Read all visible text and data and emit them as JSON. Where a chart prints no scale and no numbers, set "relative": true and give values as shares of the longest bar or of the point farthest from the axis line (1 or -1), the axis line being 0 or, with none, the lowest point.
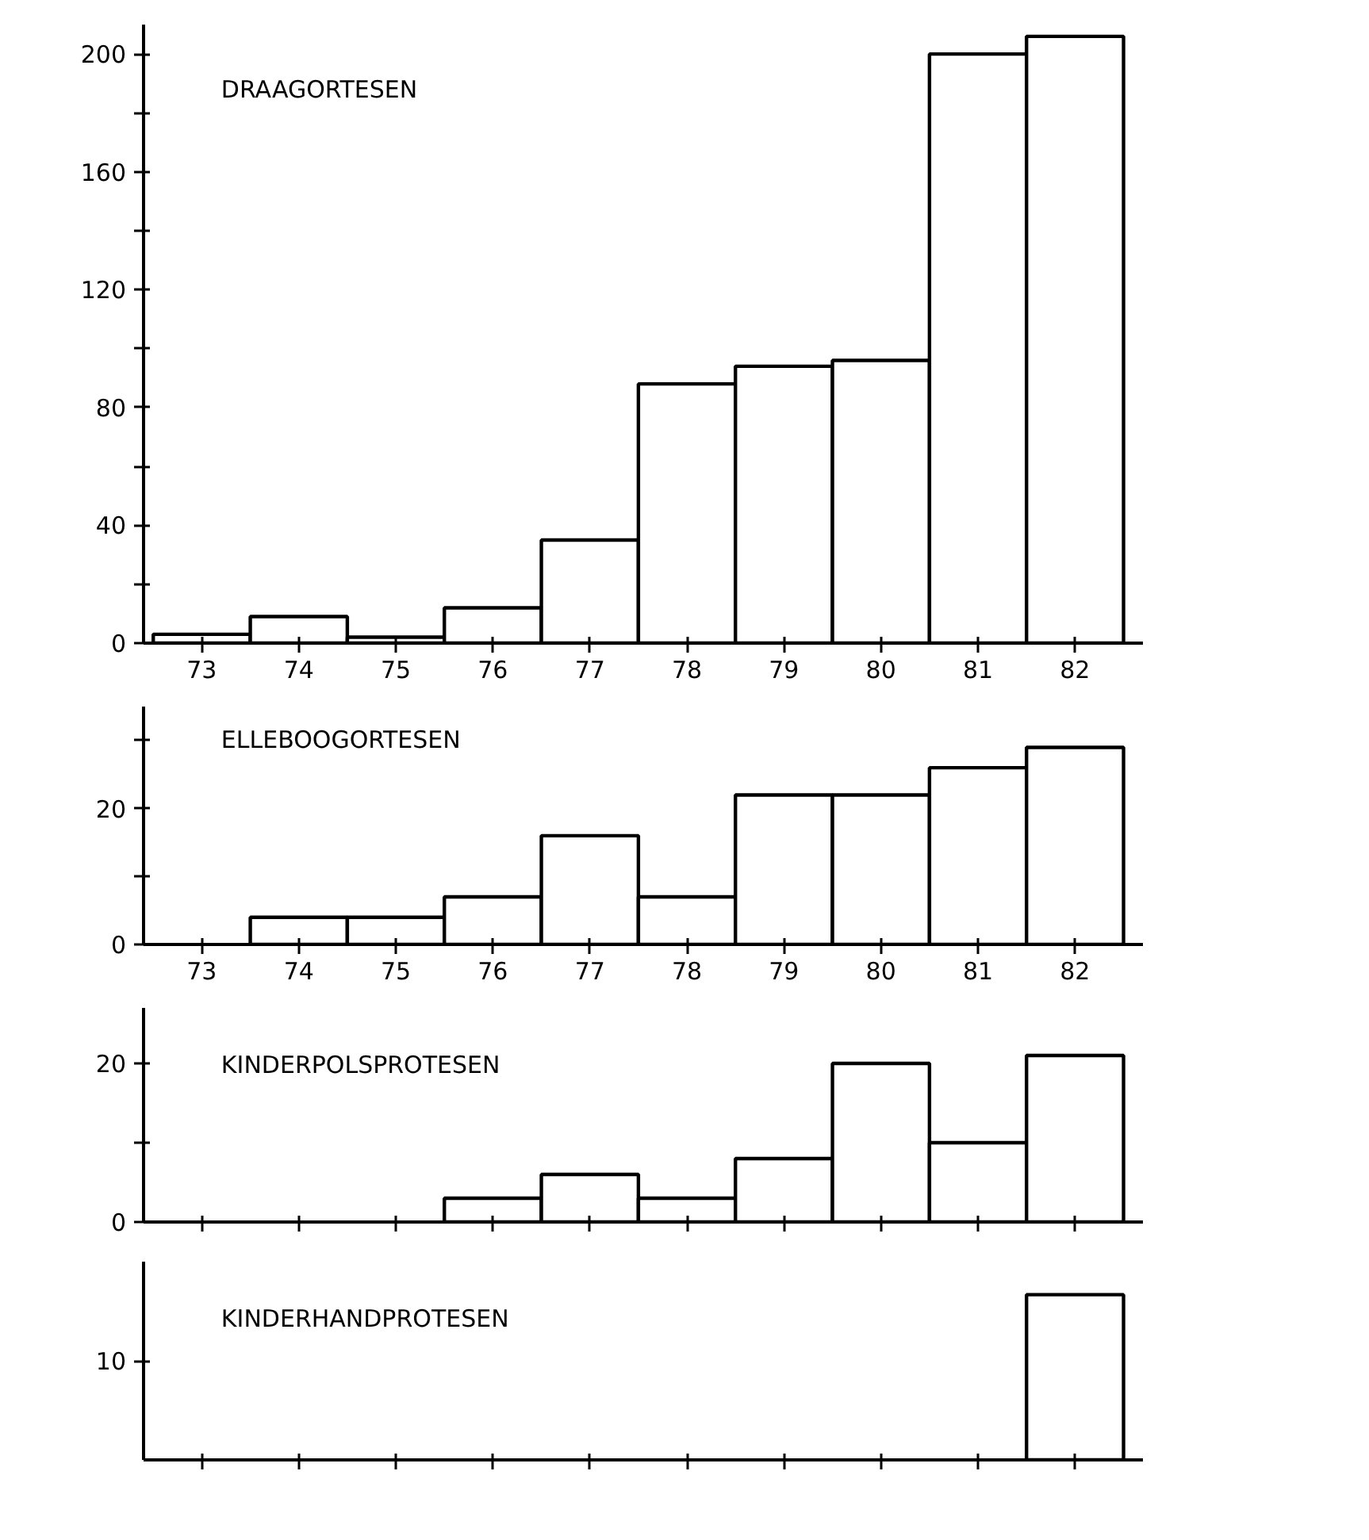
{
  "chart_data": [
    {
      "type": "bar",
      "title": "DRAAGORTESEN",
      "categories": [
        "73",
        "74",
        "75",
        "76",
        "77",
        "78",
        "79",
        "80",
        "81",
        "82"
      ],
      "values": [
        3,
        9,
        2,
        12,
        35,
        88,
        94,
        96,
        200,
        206
      ],
      "color": "#ffffff",
      "ylim": [
        0,
        210
      ],
      "yticks": [
        0,
        {
          "value": 20,
          "label": null
        },
        40,
        {
          "value": 60,
          "label": null
        },
        80,
        {
          "value": 100,
          "label": null
        },
        120,
        {
          "value": 140,
          "label": null
        },
        160,
        {
          "value": 180,
          "label": null
        },
        200
      ],
      "grid": false
    },
    {
      "type": "bar",
      "title": "ELLEBOOGORTESEN",
      "categories": [
        "73",
        "74",
        "75",
        "76",
        "77",
        "78",
        "79",
        "80",
        "81",
        "82"
      ],
      "values": [
        null,
        4,
        4,
        7,
        16,
        7,
        22,
        22,
        26,
        29
      ],
      "color": "#ffffff",
      "ylim": [
        0,
        35
      ],
      "yticks": [
        0,
        {
          "value": 10,
          "label": null
        },
        20,
        {
          "value": 30,
          "label": null
        }
      ],
      "grid": false
    },
    {
      "type": "bar",
      "title": "KINDERPOLSPROTESEN",
      "categories": [
        null,
        null,
        null,
        null,
        null,
        null,
        null,
        null,
        null,
        null
      ],
      "values": [
        null,
        null,
        null,
        3,
        6,
        3,
        8,
        20,
        10,
        21
      ],
      "color": "#ffffff",
      "ylim": [
        0,
        27
      ],
      "yticks": [
        0,
        {
          "value": 10,
          "label": null
        },
        20
      ],
      "grid": false,
      "tick_labels": "y"
    },
    {
      "type": "bar",
      "title": "KINDERHANDPROTESEN",
      "categories": [
        null,
        null,
        null,
        null,
        null,
        null,
        null,
        null,
        null,
        null
      ],
      "values": [
        null,
        null,
        null,
        null,
        null,
        null,
        null,
        null,
        null,
        1
      ],
      "color": "#ffffff",
      "relative": true,
      "annotations": [
        "10"
      ],
      "grid": false,
      "tick_labels": false
    }
  ]
}
